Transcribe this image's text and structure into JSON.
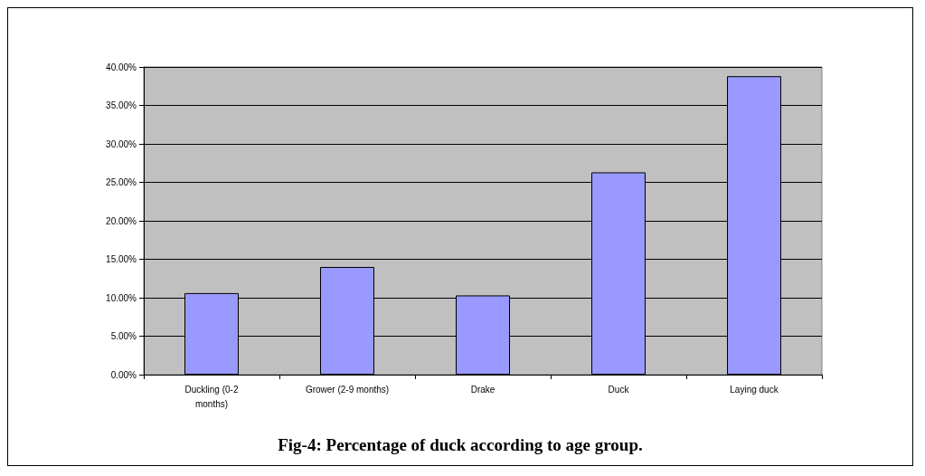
{
  "chart_data": {
    "type": "bar",
    "title": "Fig-4: Percentage of duck according to age group.",
    "categories": [
      "Duckling (0-2\nmonths)",
      "Grower (2-9 months)",
      "Drake",
      "Duck",
      "Laying duck"
    ],
    "values": [
      10.6,
      14.0,
      10.3,
      26.3,
      38.8
    ],
    "color": "#9999ff",
    "ylim": [
      0,
      40
    ],
    "yticks": [
      {
        "value": 0,
        "label": "0.00%"
      },
      {
        "value": 5,
        "label": "5.00%"
      },
      {
        "value": 10,
        "label": "10.00%"
      },
      {
        "value": 15,
        "label": "15.00%"
      },
      {
        "value": 20,
        "label": "20.00%"
      },
      {
        "value": 25,
        "label": "25.00%"
      },
      {
        "value": 30,
        "label": "30.00%"
      },
      {
        "value": 35,
        "label": "35.00%"
      },
      {
        "value": 40,
        "label": "40.00%"
      }
    ],
    "grid": "y"
  }
}
